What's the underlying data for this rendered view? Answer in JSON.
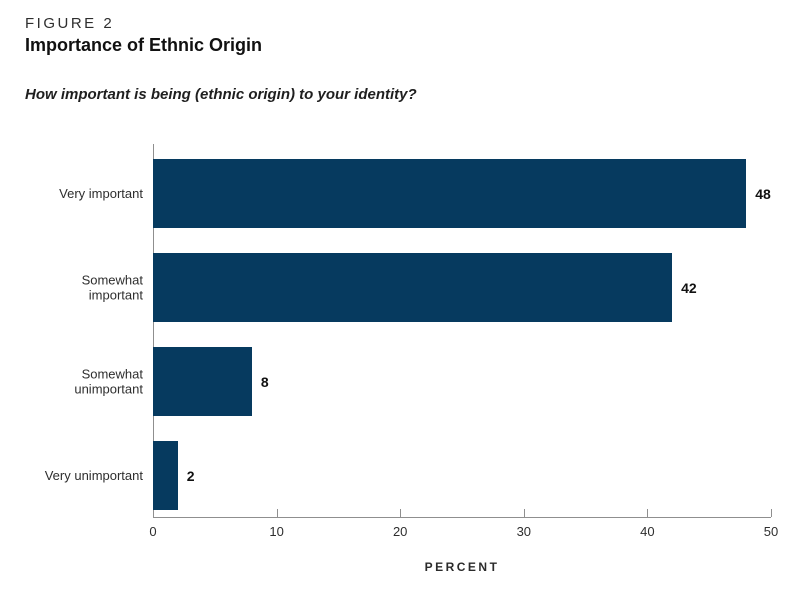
{
  "figure_label": "FIGURE 2",
  "title": "Importance of Ethnic Origin",
  "subtitle": "How important is being (ethnic origin) to your identity?",
  "chart_data": {
    "type": "bar",
    "orientation": "horizontal",
    "title": "Importance of Ethnic Origin",
    "question": "How important is being (ethnic origin) to your identity?",
    "categories": [
      "Very important",
      "Somewhat important",
      "Somewhat unimportant",
      "Very unimportant"
    ],
    "values": [
      48,
      42,
      8,
      2
    ],
    "xlabel": "PERCENT",
    "ylabel": "",
    "xlim": [
      0,
      50
    ],
    "xticks": [
      0,
      10,
      20,
      30,
      40,
      50
    ],
    "grid": false,
    "legend": "none",
    "value_labels": true,
    "colors": {
      "bar": "#063a5f",
      "axis": "#8f8f8f",
      "text": "#1a1a1a"
    }
  }
}
